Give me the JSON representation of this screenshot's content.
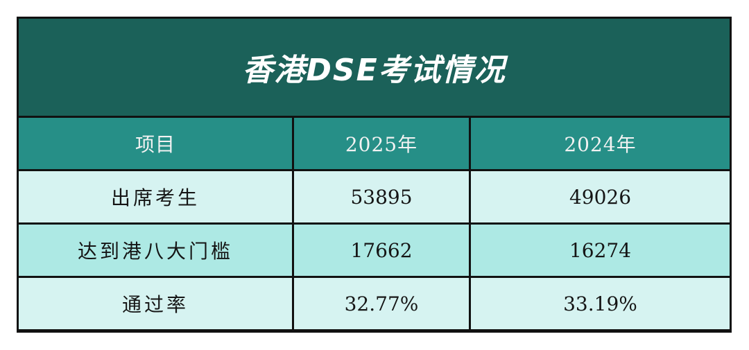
{
  "title": "香港DSE考试情况",
  "headers": [
    "项目",
    "2025年",
    "2024年"
  ],
  "rows": [
    {
      "label": "出席考生",
      "y2025": "53895",
      "y2024": "49026"
    },
    {
      "label": "达到港八大门槛",
      "y2025": "17662",
      "y2024": "16274"
    },
    {
      "label": "通过率",
      "y2025": "32.77%",
      "y2024": "33.19%"
    }
  ],
  "colors": {
    "title_bg": "#1b6159",
    "header_bg": "#268f87",
    "row_light": "#d6f3f1",
    "row_mid": "#ade9e4",
    "border": "#111111"
  }
}
